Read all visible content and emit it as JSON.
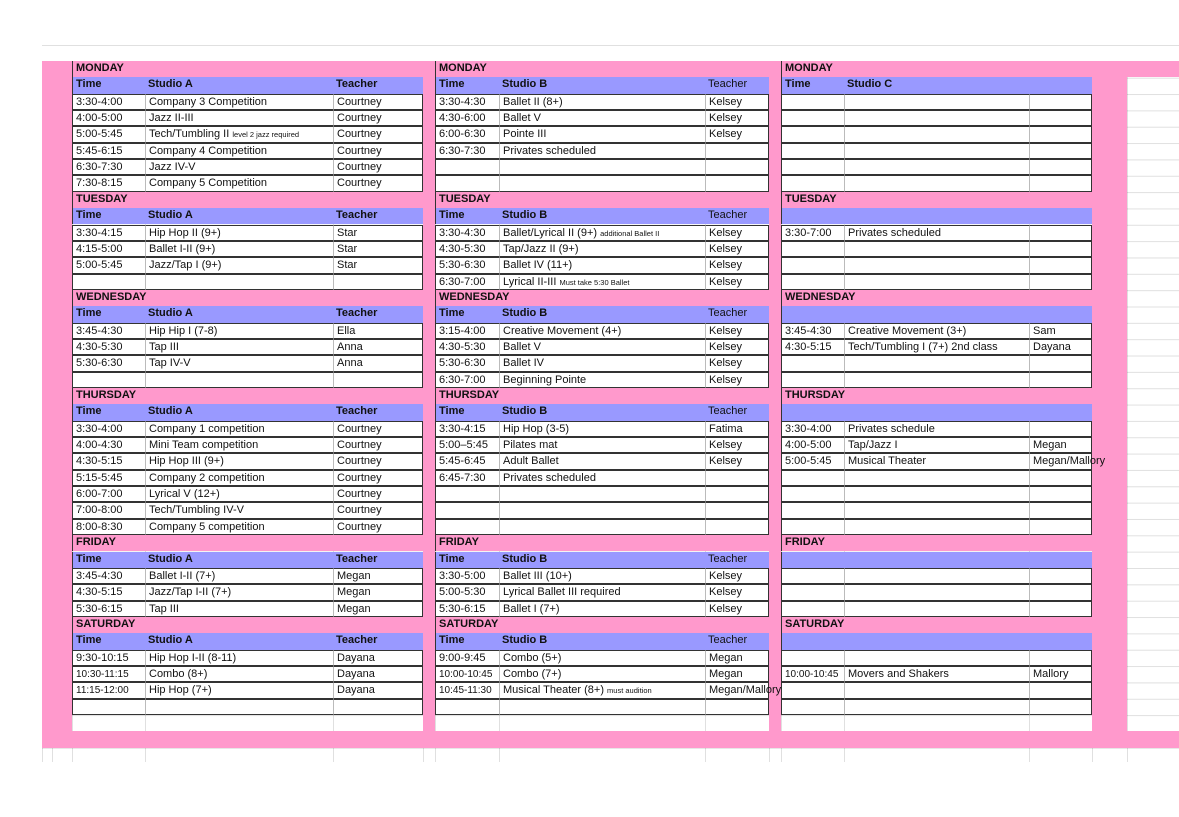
{
  "colors": {
    "day_row": "#ff99cc",
    "header_row": "#9999ff"
  },
  "days": [
    {
      "name": "MONDAY",
      "slots": 6,
      "studios": [
        {
          "header": {
            "time": "Time",
            "studio": "Studio A",
            "teacher": "Teacher"
          },
          "rows": [
            {
              "time": "3:30-4:00",
              "class": "Company 3 Competition",
              "teacher": "Courtney"
            },
            {
              "time": "4:00-5:00",
              "class": "Jazz II-III",
              "teacher": "Courtney"
            },
            {
              "time": "5:00-5:45",
              "class": "Tech/Tumbling II",
              "note": "level 2 jazz required",
              "teacher": "Courtney"
            },
            {
              "time": "5:45-6:15",
              "class": "Company 4 Competition",
              "teacher": "Courtney"
            },
            {
              "time": "6:30-7:30",
              "class": "Jazz IV-V",
              "teacher": "Courtney"
            },
            {
              "time": "7:30-8:15",
              "class": "Company 5 Competition",
              "teacher": "Courtney"
            }
          ]
        },
        {
          "header": {
            "time": "Time",
            "studio": "Studio B",
            "teacher": "Teacher"
          },
          "rows": [
            {
              "time": "3:30-4:30",
              "class": "Ballet II (8+)",
              "teacher": "Kelsey"
            },
            {
              "time": "4:30-6:00",
              "class": "Ballet V",
              "teacher": "Kelsey"
            },
            {
              "time": "6:00-6:30",
              "class": "Pointe III",
              "teacher": "Kelsey"
            },
            {
              "time": "6:30-7:30",
              "class": "Privates scheduled",
              "teacher": ""
            }
          ]
        },
        {
          "header": {
            "time": "Time",
            "studio": "Studio C",
            "teacher": ""
          },
          "rows": []
        }
      ]
    },
    {
      "name": "TUESDAY",
      "slots": 4,
      "studios": [
        {
          "header": {
            "time": "Time",
            "studio": "Studio A",
            "teacher": "Teacher"
          },
          "rows": [
            {
              "time": "3:30-4:15",
              "class": "Hip Hop II (9+)",
              "teacher": "Star"
            },
            {
              "time": "4:15-5:00",
              "class": " Ballet I-II (9+)",
              "teacher": "Star"
            },
            {
              "time": "5:00-5:45",
              "class": " Jazz/Tap I (9+)",
              "teacher": "Star"
            }
          ]
        },
        {
          "header": {
            "time": "Time",
            "studio": "Studio B",
            "teacher": "Teacher"
          },
          "rows": [
            {
              "time": "3:30-4:30",
              "class": "Ballet/Lyrical II (9+)",
              "note": "additional Ballet II",
              "teacher": "Kelsey"
            },
            {
              "time": "4:30-5:30",
              "class": "Tap/Jazz II (9+)",
              "teacher": "Kelsey"
            },
            {
              "time": "5:30-6:30",
              "class": "Ballet IV (11+)",
              "teacher": "Kelsey"
            },
            {
              "time": "6:30-7:00",
              "class": "Lyrical II-III",
              "note": "Must take 5:30 Ballet",
              "teacher": "Kelsey"
            }
          ]
        },
        {
          "header": {
            "time": "",
            "studio": "",
            "teacher": ""
          },
          "rows": [
            {
              "time": "3:30-7:00",
              "class": "Privates scheduled",
              "teacher": ""
            }
          ]
        }
      ]
    },
    {
      "name": "WEDNESDAY",
      "slots": 4,
      "studios": [
        {
          "header": {
            "time": "Time",
            "studio": "Studio A",
            "teacher": "Teacher"
          },
          "rows": [
            {
              "time": "3:45-4:30",
              "class": "Hip Hip I (7-8)",
              "teacher": "Ella"
            },
            {
              "time": "4:30-5:30",
              "class": "Tap III",
              "teacher": "Anna"
            },
            {
              "time": "5:30-6:30",
              "class": "Tap IV-V",
              "teacher": "Anna"
            }
          ]
        },
        {
          "header": {
            "time": "Time",
            "studio": "Studio B",
            "teacher": "Teacher"
          },
          "rows": [
            {
              "time": "3:15-4:00",
              "class": "Creative Movement (4+)",
              "teacher": "Kelsey"
            },
            {
              "time": "4:30-5:30",
              "class": "Ballet V",
              "teacher": "Kelsey"
            },
            {
              "time": "5:30-6:30",
              "class": "Ballet IV",
              "teacher": "Kelsey"
            },
            {
              "time": "6:30-7:00",
              "class": "Beginning Pointe",
              "teacher": "Kelsey"
            }
          ]
        },
        {
          "header": {
            "time": "",
            "studio": "",
            "teacher": ""
          },
          "rows": [
            {
              "time": "3:45-4:30",
              "class": "Creative Movement  (3+)",
              "teacher": "Sam"
            },
            {
              "time": "4:30-5:15",
              "class": "Tech/Tumbling I (7+) 2nd class",
              "teacher": "Dayana"
            }
          ]
        }
      ]
    },
    {
      "name": "THURSDAY",
      "slots": 7,
      "studios": [
        {
          "header": {
            "time": "Time",
            "studio": "Studio A",
            "teacher": "Teacher"
          },
          "rows": [
            {
              "time": "3:30-4:00",
              "class": "Company 1 competition",
              "teacher": "Courtney"
            },
            {
              "time": "4:00-4:30",
              "class": "Mini Team competition",
              "teacher": "Courtney"
            },
            {
              "time": "4:30-5:15",
              "class": "Hip Hop III  (9+)",
              "teacher": "Courtney"
            },
            {
              "time": "5:15-5:45",
              "class": "Company 2 competition",
              "teacher": "Courtney"
            },
            {
              "time": "6:00-7:00",
              "class": "Lyrical  V (12+)",
              "teacher": "Courtney"
            },
            {
              "time": "7:00-8:00",
              "class": "Tech/Tumbling IV-V",
              "teacher": "Courtney"
            },
            {
              "time": "8:00-8:30",
              "class": "Company 5 competition",
              "teacher": "Courtney"
            }
          ]
        },
        {
          "header": {
            "time": "Time",
            "studio": "Studio B",
            "teacher": "Teacher"
          },
          "rows": [
            {
              "time": "3:30-4:15",
              "class": "Hip Hop (3-5)",
              "teacher": "Fatima"
            },
            {
              "time": "5:00–5:45",
              "class": "Pilates mat",
              "teacher": "Kelsey"
            },
            {
              "time": "5:45-6:45",
              "class": "Adult Ballet",
              "teacher": "Kelsey"
            },
            {
              "time": "6:45-7:30",
              "class": "Privates scheduled",
              "teacher": ""
            }
          ]
        },
        {
          "header": {
            "time": "",
            "studio": "",
            "teacher": ""
          },
          "rows": [
            {
              "time": "3:30-4:00",
              "class": "Privates schedule",
              "teacher": ""
            },
            {
              "time": "4:00-5:00",
              "class": "Tap/Jazz I",
              "teacher": "Megan"
            },
            {
              "time": "5:00-5:45",
              "class": "Musical Theater",
              "teacher": "Megan/Mallory"
            }
          ]
        }
      ]
    },
    {
      "name": "FRIDAY",
      "slots": 3,
      "studios": [
        {
          "header": {
            "time": "Time",
            "studio": "Studio A",
            "teacher": "Teacher"
          },
          "rows": [
            {
              "time": "3:45-4:30",
              "class": "Ballet I-II (7+)",
              "teacher": "Megan"
            },
            {
              "time": "4:30-5:15",
              "class": "Jazz/Tap I-II (7+)",
              "teacher": "Megan"
            },
            {
              "time": "5:30-6:15",
              "class": "Tap III",
              "teacher": "Megan"
            }
          ]
        },
        {
          "header": {
            "time": "Time",
            "studio": "Studio B",
            "teacher": "Teacher"
          },
          "rows": [
            {
              "time": "3:30-5:00",
              "class": "Ballet III (10+)",
              "teacher": "Kelsey"
            },
            {
              "time": "5:00-5:30",
              "class": "Lyrical  Ballet III required",
              "teacher": "Kelsey"
            },
            {
              "time": "5:30-6:15",
              "class": "Ballet I (7+)",
              "teacher": "Kelsey"
            }
          ]
        },
        {
          "header": {
            "time": "",
            "studio": "",
            "teacher": ""
          },
          "rows": []
        }
      ]
    },
    {
      "name": "SATURDAY",
      "slots": 4,
      "studios": [
        {
          "header": {
            "time": "Time",
            "studio": "Studio A",
            "teacher": "Teacher"
          },
          "rows": [
            {
              "time": "9:30-10:15",
              "class": "Hip Hop  I-II (8-11)",
              "teacher": "Dayana"
            },
            {
              "time": "10:30-11:15",
              "class": "Combo (8+)",
              "teacher": "Dayana"
            },
            {
              "time": "11:15-12:00",
              "class": "Hip Hop (7+)",
              "teacher": "Dayana"
            }
          ]
        },
        {
          "header": {
            "time": "Time",
            "studio": "Studio B",
            "teacher": "Teacher"
          },
          "rows": [
            {
              "time": "9:00-9:45",
              "class": "Combo (5+)",
              "teacher": "Megan"
            },
            {
              "time": "10:00-10:45",
              "class": "Combo (7+)",
              "teacher": "Megan"
            },
            {
              "time": "10:45-11:30",
              "class": "Musical Theater (8+)",
              "note": "must audition",
              "teacher": "Megan/Mallory"
            }
          ]
        },
        {
          "header": {
            "time": "",
            "studio": "",
            "teacher": ""
          },
          "rows": [
            null,
            {
              "time": "10:00-10:45",
              "class": "Movers and Shakers",
              "teacher": "Mallory"
            }
          ]
        }
      ]
    }
  ]
}
